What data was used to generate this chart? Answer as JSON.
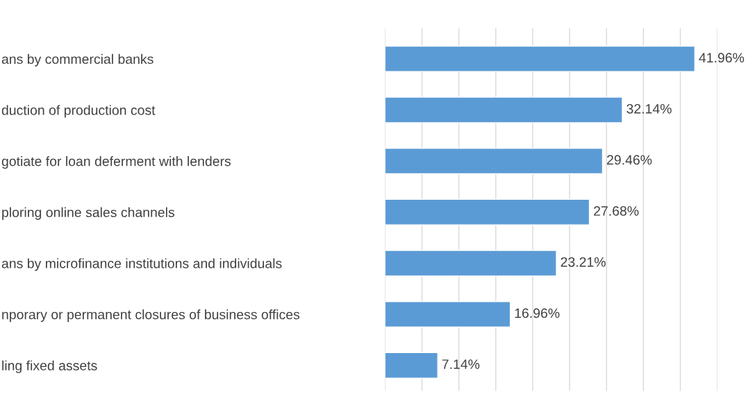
{
  "chart_data": {
    "type": "bar",
    "orientation": "horizontal",
    "categories": [
      "ans by commercial banks",
      "duction of production cost",
      "gotiate for loan deferment with lenders",
      "ploring online sales channels",
      "ans by microfinance institutions and individuals",
      "nporary or permanent closures of business offices",
      "ling fixed assets"
    ],
    "values": [
      41.96,
      32.14,
      29.46,
      27.68,
      23.21,
      16.96,
      7.14
    ],
    "value_labels": [
      "41.96%",
      "32.14%",
      "29.46%",
      "27.68%",
      "23.21%",
      "16.96%",
      "7.14%"
    ],
    "color": "#5b9bd5",
    "xlim": [
      0,
      45
    ],
    "xticks": [
      {
        "value": 0,
        "label": null
      },
      {
        "value": 5,
        "label": null
      },
      {
        "value": 10,
        "label": null
      },
      {
        "value": 15,
        "label": null
      },
      {
        "value": 20,
        "label": null
      },
      {
        "value": 25,
        "label": null
      },
      {
        "value": 30,
        "label": null
      },
      {
        "value": 35,
        "label": null
      },
      {
        "value": 40,
        "label": null
      },
      {
        "value": 45,
        "label": null
      }
    ],
    "grid": "x",
    "tick_labels": "y"
  }
}
